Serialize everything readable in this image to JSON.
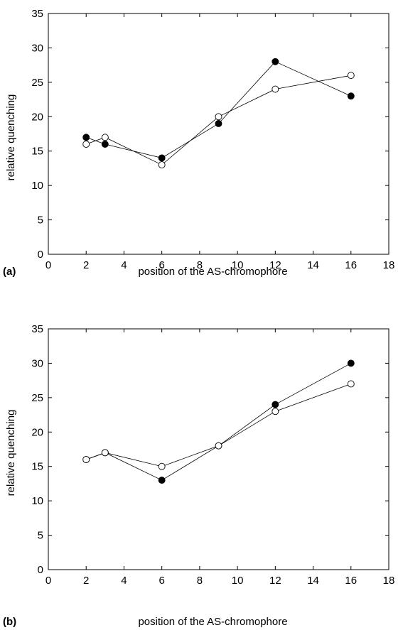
{
  "chart_data": [
    {
      "type": "line",
      "panel_label": "(a)",
      "xlabel": "position of the AS-chromophore",
      "ylabel": "relative quenching",
      "xlim": [
        0,
        18
      ],
      "ylim": [
        0,
        35
      ],
      "xticks": [
        0,
        2,
        4,
        6,
        8,
        10,
        12,
        14,
        16,
        18
      ],
      "yticks": [
        0,
        5,
        10,
        15,
        20,
        25,
        30,
        35
      ],
      "x": [
        2,
        3,
        6,
        9,
        12,
        16
      ],
      "series": [
        {
          "marker": "filled-circle",
          "values": [
            17,
            16,
            14,
            19,
            28,
            23
          ]
        },
        {
          "marker": "open-circle",
          "values": [
            16,
            17,
            13,
            20,
            24,
            26
          ]
        }
      ]
    },
    {
      "type": "line",
      "panel_label": "(b)",
      "xlabel": "position of the AS-chromophore",
      "ylabel": "relative quenching",
      "xlim": [
        0,
        18
      ],
      "ylim": [
        0,
        35
      ],
      "xticks": [
        0,
        2,
        4,
        6,
        8,
        10,
        12,
        14,
        16,
        18
      ],
      "yticks": [
        0,
        5,
        10,
        15,
        20,
        25,
        30,
        35
      ],
      "x": [
        2,
        3,
        6,
        9,
        12,
        16
      ],
      "series": [
        {
          "marker": "filled-circle",
          "values": [
            16,
            17,
            13,
            18,
            24,
            30
          ]
        },
        {
          "marker": "open-circle",
          "values": [
            16,
            17,
            15,
            18,
            23,
            27
          ]
        }
      ]
    }
  ]
}
